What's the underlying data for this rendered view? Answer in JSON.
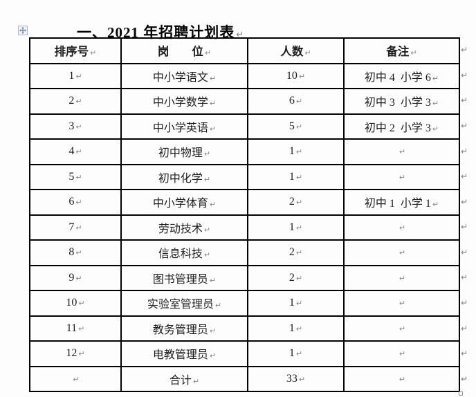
{
  "doc": {
    "title": "一、2021 年招聘计划表"
  },
  "marks": {
    "pilcrow": "↵",
    "row_end_count": 14
  },
  "icons": {
    "table_move_icon": "four-direction-move-cross",
    "table_resize_icon": "small-square-handle",
    "paragraph_mark_icon": "cjk-paragraph-return-arrow"
  },
  "colors": {
    "table_border": "#000000",
    "body_text": "#1d1d1d",
    "title_text": "#000000",
    "formatting_mark": "#808080",
    "move_handle_border": "#a8bdd4",
    "page_background": "#fdfdfd"
  },
  "table": {
    "headers": [
      "排序号",
      "岗　　位",
      "人数",
      "备注"
    ],
    "rows": [
      [
        "1",
        "中小学语文",
        "10",
        "初中 4  小学 6"
      ],
      [
        "2",
        "中小学数学",
        "6",
        "初中 3  小学 3"
      ],
      [
        "3",
        "中小学英语",
        "5",
        "初中 2  小学 3"
      ],
      [
        "4",
        "初中物理",
        "1",
        ""
      ],
      [
        "5",
        "初中化学",
        "1",
        ""
      ],
      [
        "6",
        "中小学体育",
        "2",
        "初中 1  小学 1"
      ],
      [
        "7",
        "劳动技术",
        "1",
        ""
      ],
      [
        "8",
        "信息科技",
        "2",
        ""
      ],
      [
        "9",
        "图书管理员",
        "2",
        ""
      ],
      [
        "10",
        "实验室管理员",
        "1",
        ""
      ],
      [
        "11",
        "教务管理员",
        "1",
        ""
      ],
      [
        "12",
        "电教管理员",
        "1",
        ""
      ],
      [
        "",
        "合计",
        "33",
        ""
      ]
    ]
  }
}
